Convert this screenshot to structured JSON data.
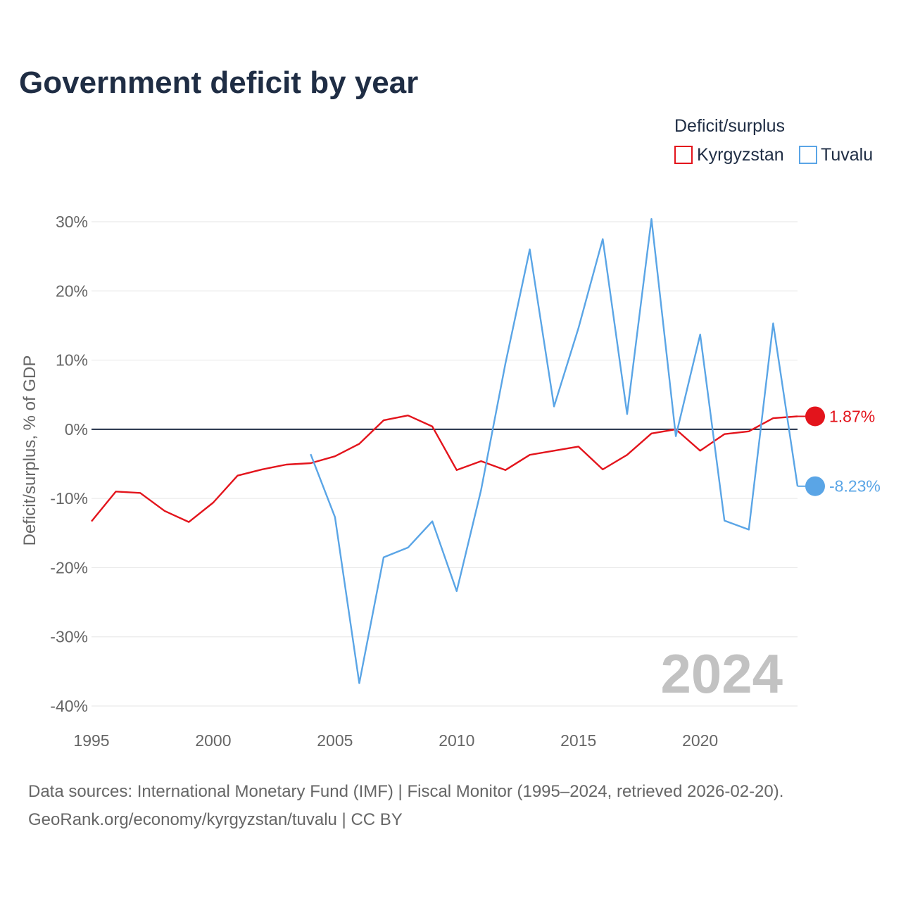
{
  "header": {
    "title": "Government deficit by year"
  },
  "legend": {
    "title": "Deficit/surplus",
    "items": [
      {
        "label": "Kyrgyzstan",
        "color": "#e3141c"
      },
      {
        "label": "Tuvalu",
        "color": "#5aa5e6"
      }
    ]
  },
  "footer": {
    "source_line1": "Data sources: International Monetary Fund (IMF) | Fiscal Monitor (1995–2024, retrieved 2026-02-20).",
    "source_line2": "GeoRank.org/economy/kyrgyzstan/tuvalu | CC BY"
  },
  "watermark_year": "2024",
  "chart_data": {
    "type": "line",
    "title": "Government deficit by year",
    "xlabel": "",
    "ylabel": "Deficit/surplus, % of GDP",
    "xlim": [
      1995,
      2024
    ],
    "ylim": [
      -40,
      30
    ],
    "x_ticks": [
      1995,
      2000,
      2005,
      2010,
      2015,
      2020
    ],
    "y_ticks": [
      30,
      20,
      10,
      0,
      -10,
      -20,
      -30,
      -40
    ],
    "y_tick_labels": [
      "30%",
      "20%",
      "10%",
      "0%",
      "-10%",
      "-20%",
      "-30%",
      "-40%"
    ],
    "zero_line": true,
    "grid": true,
    "series": [
      {
        "name": "Kyrgyzstan",
        "color": "#e3141c",
        "end_label": "1.87%",
        "x": [
          1995,
          1996,
          1997,
          1998,
          1999,
          2000,
          2001,
          2002,
          2003,
          2004,
          2005,
          2006,
          2007,
          2008,
          2009,
          2010,
          2011,
          2012,
          2013,
          2014,
          2015,
          2016,
          2017,
          2018,
          2019,
          2020,
          2021,
          2022,
          2023,
          2024
        ],
        "values": [
          -13.3,
          -9.0,
          -9.2,
          -11.8,
          -13.4,
          -10.6,
          -6.7,
          -5.8,
          -5.1,
          -4.9,
          -3.9,
          -2.1,
          1.3,
          2.0,
          0.4,
          -5.9,
          -4.6,
          -5.9,
          -3.7,
          -3.1,
          -2.5,
          -5.8,
          -3.7,
          -0.6,
          0.0,
          -3.1,
          -0.7,
          -0.3,
          1.6,
          1.87
        ]
      },
      {
        "name": "Tuvalu",
        "color": "#5aa5e6",
        "end_label": "-8.23%",
        "x": [
          2004,
          2005,
          2006,
          2007,
          2008,
          2009,
          2010,
          2011,
          2012,
          2013,
          2014,
          2015,
          2016,
          2017,
          2018,
          2019,
          2020,
          2021,
          2022,
          2023,
          2024
        ],
        "values": [
          -3.6,
          -12.7,
          -36.7,
          -18.5,
          -17.1,
          -13.3,
          -23.4,
          -8.8,
          9.5,
          26.0,
          3.3,
          14.6,
          27.5,
          2.2,
          30.4,
          -1.0,
          13.7,
          -13.2,
          -14.5,
          15.3,
          -8.23
        ]
      }
    ]
  }
}
